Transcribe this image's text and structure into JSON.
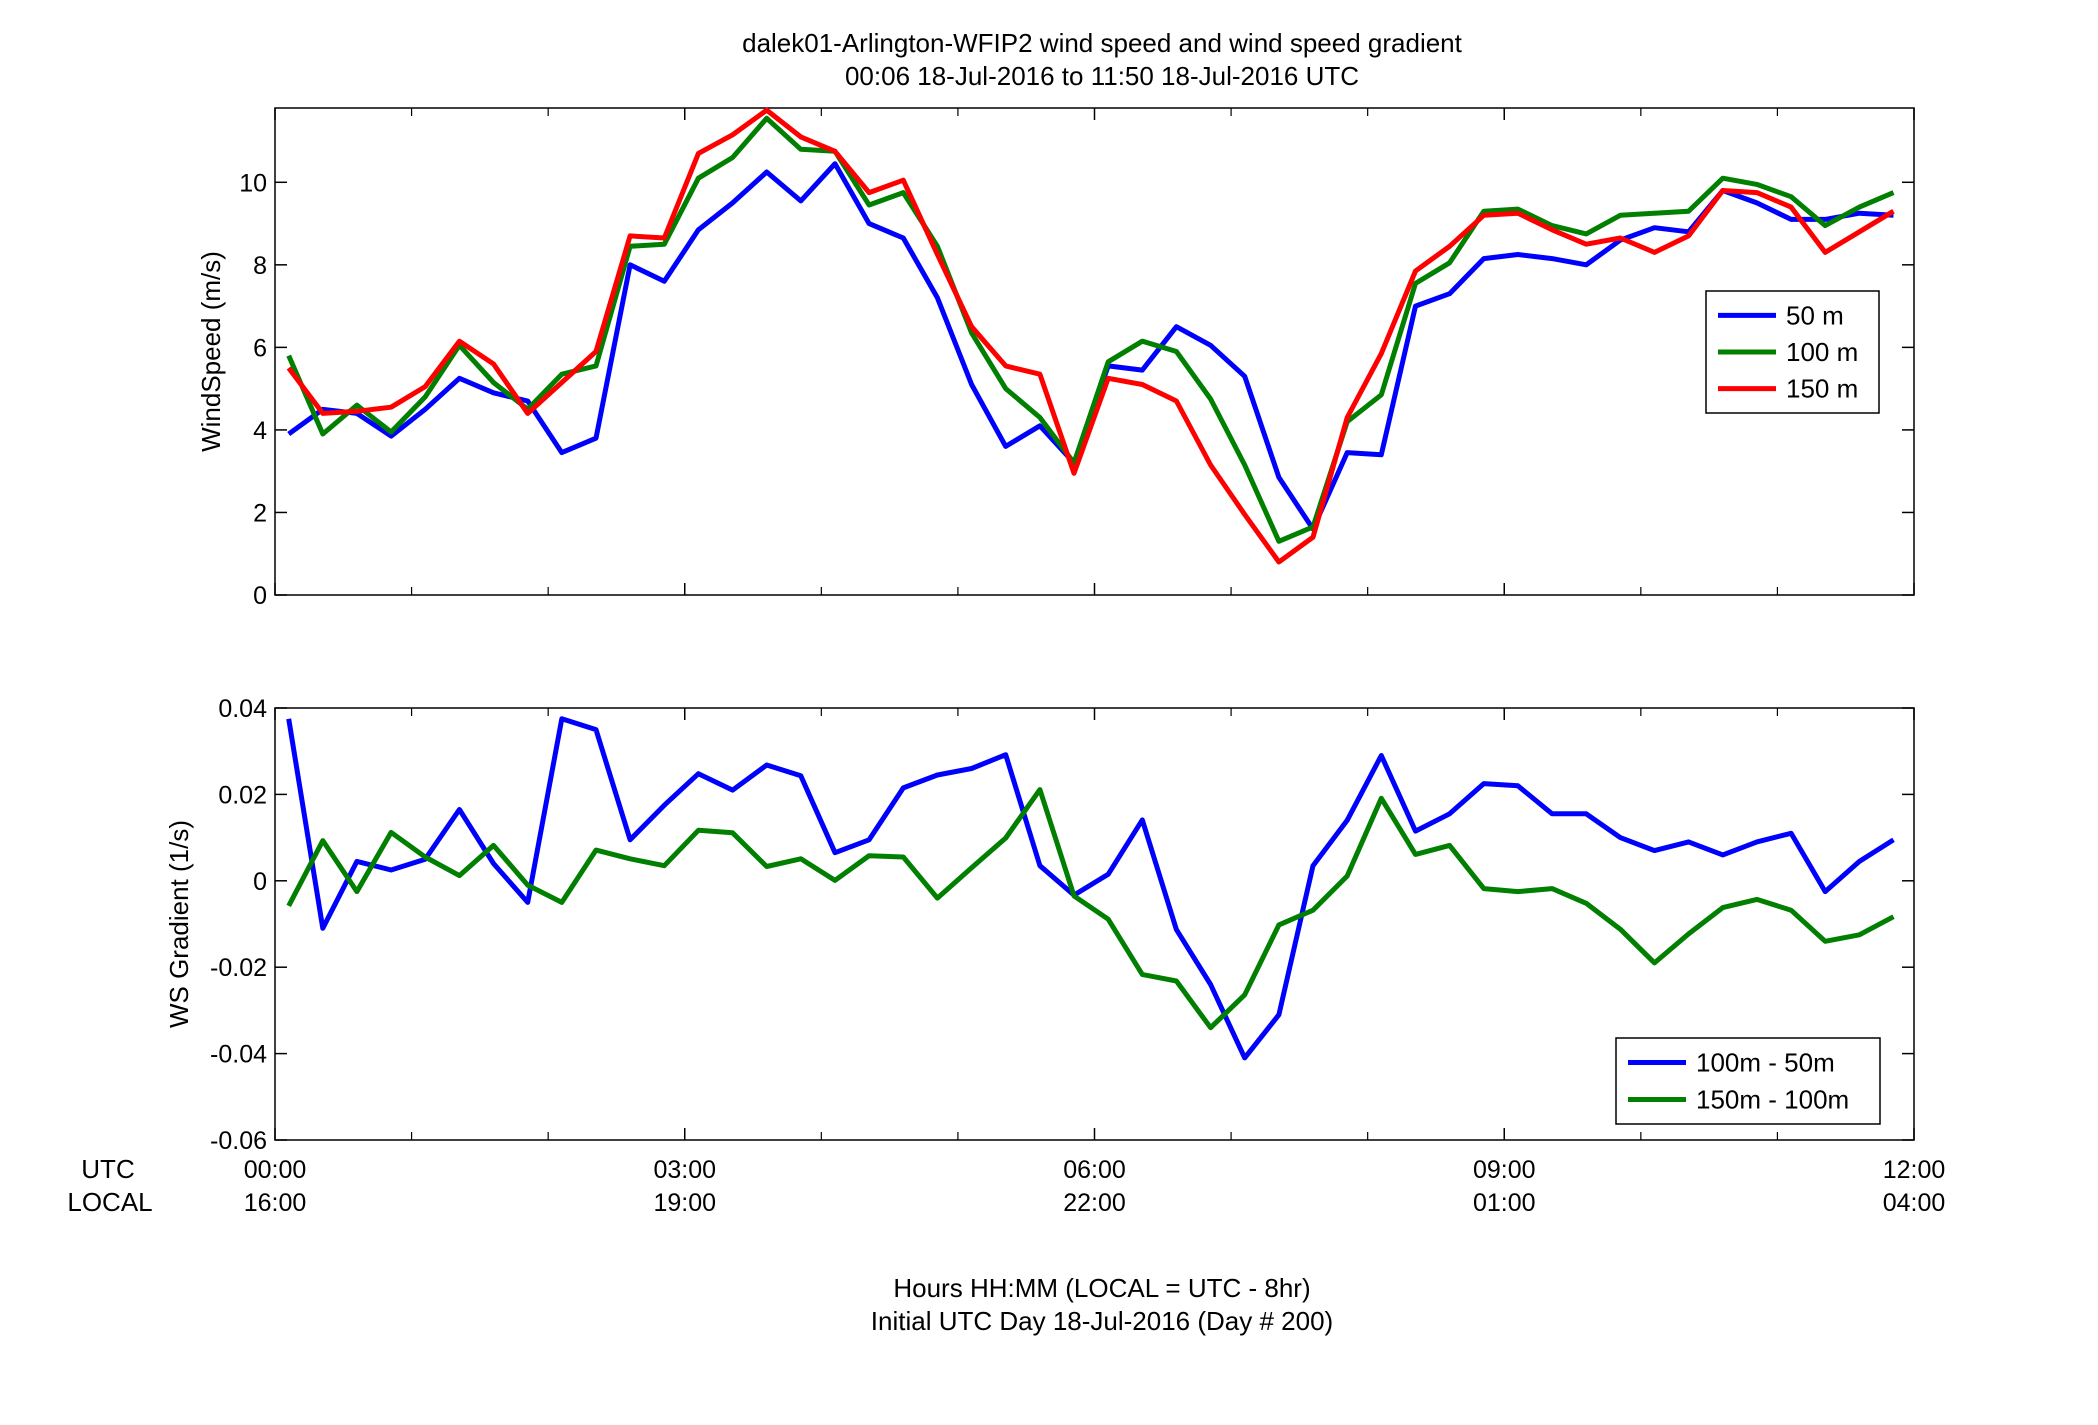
{
  "chart_data": {
    "title_line1": "dalek01-Arlington-WFIP2  wind speed and wind speed gradient",
    "title_line2": "00:06 18-Jul-2016 to 11:50 18-Jul-2016  UTC",
    "xlim": [
      0,
      12
    ],
    "x_tick_values": [
      0,
      3,
      6,
      9,
      12
    ],
    "utc_ticks": [
      "00:00",
      "03:00",
      "06:00",
      "09:00",
      "12:00"
    ],
    "local_ticks": [
      "16:00",
      "19:00",
      "22:00",
      "01:00",
      "04:00"
    ],
    "utc_label": "UTC",
    "local_label": "LOCAL",
    "xlabel_line1": "Hours HH:MM  (LOCAL = UTC - 8hr)",
    "xlabel_line2": "Initial UTC Day 18-Jul-2016 (Day # 200)",
    "x": [
      0.1,
      0.35,
      0.6,
      0.85,
      1.1,
      1.35,
      1.6,
      1.85,
      2.1,
      2.35,
      2.6,
      2.85,
      3.1,
      3.35,
      3.6,
      3.85,
      4.1,
      4.35,
      4.6,
      4.85,
      5.1,
      5.35,
      5.6,
      5.85,
      6.1,
      6.35,
      6.6,
      6.85,
      7.1,
      7.35,
      7.6,
      7.85,
      8.1,
      8.35,
      8.6,
      8.85,
      9.1,
      9.35,
      9.6,
      9.85,
      10.1,
      10.35,
      10.6,
      10.85,
      11.1,
      11.35,
      11.6,
      11.85
    ],
    "panels": [
      {
        "type": "line",
        "ylabel": "WindSpeed (m/s)",
        "ylim": [
          0,
          11.8
        ],
        "yticks": [
          0,
          2,
          4,
          6,
          8,
          10
        ],
        "ytick_labels": [
          "0",
          "2",
          "4",
          "6",
          "8",
          "10"
        ],
        "legend_position": "right",
        "series": [
          {
            "name": "50 m",
            "color": "#0000ff",
            "values": [
              3.9,
              4.5,
              4.4,
              3.85,
              4.5,
              5.25,
              4.9,
              4.7,
              3.45,
              3.8,
              8.0,
              7.6,
              8.85,
              9.5,
              10.25,
              9.55,
              10.45,
              9.0,
              8.65,
              7.2,
              5.1,
              3.6,
              4.1,
              3.2,
              5.55,
              5.45,
              6.5,
              6.05,
              5.3,
              2.85,
              1.6,
              3.45,
              3.4,
              7.0,
              7.3,
              8.15,
              8.25,
              8.15,
              8.0,
              8.6,
              8.9,
              8.8,
              9.8,
              9.5,
              9.1,
              9.1,
              9.25,
              9.2
            ]
          },
          {
            "name": "100 m",
            "color": "#007f00",
            "values": [
              5.8,
              3.9,
              4.6,
              3.95,
              4.8,
              6.05,
              5.15,
              4.5,
              5.35,
              5.55,
              8.45,
              8.5,
              10.1,
              10.6,
              11.55,
              10.8,
              10.75,
              9.45,
              9.75,
              8.45,
              6.35,
              5.0,
              4.3,
              3.2,
              5.65,
              6.15,
              5.9,
              4.75,
              3.15,
              1.3,
              1.65,
              4.2,
              4.85,
              7.55,
              8.05,
              9.3,
              9.35,
              8.95,
              8.75,
              9.2,
              9.25,
              9.3,
              10.1,
              9.95,
              9.65,
              8.95,
              9.4,
              9.75
            ]
          },
          {
            "name": "150 m",
            "color": "#ff0000",
            "values": [
              5.5,
              4.4,
              4.45,
              4.55,
              5.05,
              6.15,
              5.6,
              4.4,
              5.15,
              5.9,
              8.7,
              8.65,
              10.7,
              11.15,
              11.75,
              11.1,
              10.75,
              9.75,
              10.05,
              8.25,
              6.5,
              5.55,
              5.35,
              2.95,
              5.25,
              5.1,
              4.7,
              3.15,
              1.95,
              0.8,
              1.4,
              4.3,
              5.85,
              7.85,
              8.45,
              9.2,
              9.25,
              8.85,
              8.5,
              8.65,
              8.3,
              8.7,
              9.8,
              9.75,
              9.4,
              8.3,
              8.8,
              9.3
            ]
          }
        ]
      },
      {
        "type": "line",
        "ylabel": "WS Gradient (1/s)",
        "ylim": [
          -0.06,
          0.04
        ],
        "yticks": [
          -0.06,
          -0.04,
          -0.02,
          0,
          0.02,
          0.04
        ],
        "ytick_labels": [
          "-0.06",
          "-0.04",
          "-0.02",
          "0",
          "0.02",
          "0.04"
        ],
        "legend_position": "bottom-right",
        "series": [
          {
            "name": "100m - 50m",
            "color": "#0000ff",
            "values": [
              0.0375,
              -0.011,
              0.0045,
              0.0025,
              0.005,
              0.0165,
              0.004,
              -0.005,
              0.0375,
              0.035,
              0.0095,
              0.0175,
              0.0248,
              0.021,
              0.0268,
              0.0243,
              0.0065,
              0.0095,
              0.0215,
              0.0245,
              0.026,
              0.0292,
              0.0035,
              -0.0033,
              0.0015,
              0.0141,
              -0.0113,
              -0.024,
              -0.041,
              -0.031,
              0.0035,
              0.014,
              0.029,
              0.0115,
              0.0155,
              0.0225,
              0.022,
              0.0155,
              0.0155,
              0.01,
              0.007,
              0.009,
              0.006,
              0.009,
              0.011,
              -0.0025,
              0.0045,
              0.0095
            ]
          },
          {
            "name": "150m - 100m",
            "color": "#007f00",
            "values": [
              -0.0058,
              0.0093,
              -0.0025,
              0.0112,
              0.0055,
              0.0012,
              0.0082,
              -0.001,
              -0.005,
              0.0071,
              0.0051,
              0.0035,
              0.0117,
              0.0111,
              0.0033,
              0.0051,
              0.0001,
              0.0058,
              0.0055,
              -0.004,
              0.003,
              0.0099,
              0.0211,
              -0.0035,
              -0.0089,
              -0.0217,
              -0.0232,
              -0.034,
              -0.0264,
              -0.0102,
              -0.0068,
              0.0011,
              0.0191,
              0.0061,
              0.0082,
              -0.0018,
              -0.0025,
              -0.0018,
              -0.0052,
              -0.0112,
              -0.019,
              -0.0123,
              -0.0062,
              -0.0043,
              -0.0068,
              -0.014,
              -0.0125,
              -0.0083
            ]
          }
        ]
      }
    ]
  }
}
